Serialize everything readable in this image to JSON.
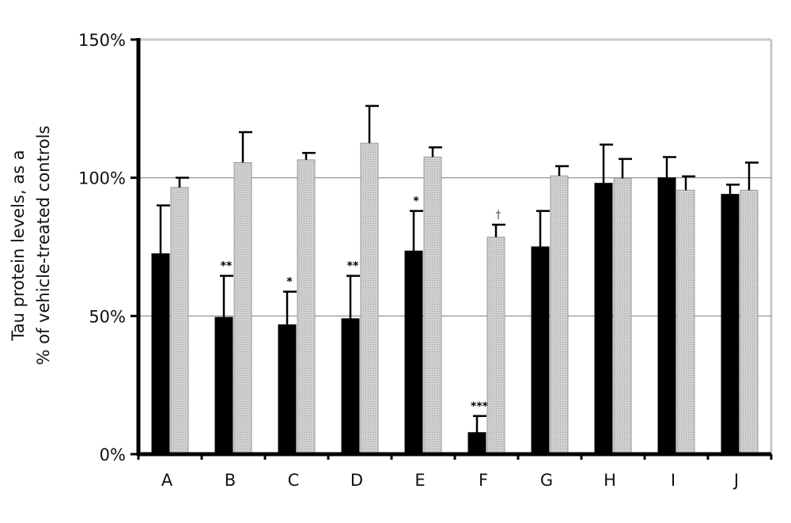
{
  "chart_data": {
    "type": "bar",
    "ylabel_lines": [
      "Tau protein levels, as a",
      "% of vehicle-treated controls"
    ],
    "xlabel": "",
    "ylim": [
      0,
      150
    ],
    "yticks": [
      {
        "value": 0,
        "label": "0%"
      },
      {
        "value": 50,
        "label": "50%"
      },
      {
        "value": 100,
        "label": "100%"
      },
      {
        "value": 150,
        "label": "150%"
      }
    ],
    "grid_y": [
      50,
      100
    ],
    "categories": [
      "A",
      "B",
      "C",
      "D",
      "E",
      "F",
      "G",
      "H",
      "I",
      "J"
    ],
    "series": [
      {
        "color": "#000000",
        "values": [
          72.5,
          49.5,
          46.8,
          49,
          73.5,
          7.8,
          75,
          98,
          100,
          94
        ],
        "errors": [
          17.5,
          15,
          12,
          15.5,
          14.5,
          6,
          13,
          14,
          7.5,
          3.5
        ],
        "annotations": [
          "",
          "**",
          "*",
          "**",
          "*",
          "***",
          "",
          "",
          "",
          ""
        ]
      },
      {
        "color": "#c8c8c8",
        "pattern": "dotted",
        "values": [
          96.5,
          105.5,
          106.5,
          112.5,
          107.5,
          78.5,
          100.7,
          99.8,
          95.5,
          95.5
        ],
        "errors": [
          3.5,
          11,
          2.5,
          13.5,
          3.5,
          4.5,
          3.5,
          7,
          5,
          10
        ],
        "annotations": [
          "",
          "",
          "",
          "",
          "",
          "†",
          "",
          "",
          "",
          ""
        ]
      }
    ],
    "legend": "none"
  }
}
